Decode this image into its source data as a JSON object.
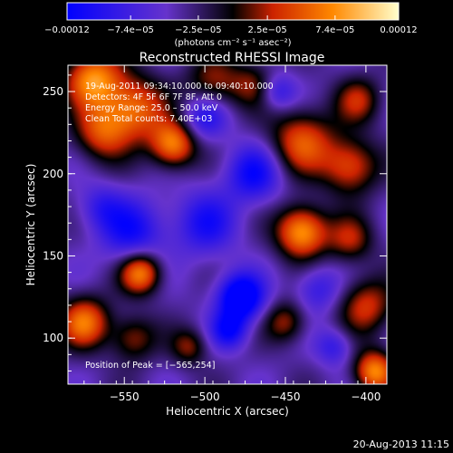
{
  "chart_data": {
    "type": "heatmap",
    "title": "Reconstructed RHESSI Image",
    "xlabel": "Heliocentric X (arcsec)",
    "ylabel": "Heliocentric Y (arcsec)",
    "xlim": [
      -585,
      -387
    ],
    "ylim": [
      72,
      266
    ],
    "x_ticks": [
      -550,
      -500,
      -450,
      -400
    ],
    "x_tick_labels": [
      "−550",
      "−500",
      "−450",
      "−400"
    ],
    "y_ticks": [
      100,
      150,
      200,
      250
    ],
    "y_tick_labels": [
      "100",
      "150",
      "200",
      "250"
    ],
    "colorbar": {
      "min": -0.00012,
      "max": 0.00012,
      "tick_values": [
        -0.00012,
        -7.4e-05,
        -2.5e-05,
        2.5e-05,
        7.4e-05,
        0.00012
      ],
      "tick_labels": [
        "−0.00012",
        "−7.4e−05",
        "−2.5e−05",
        "2.5e−05",
        "7.4e−05",
        "0.00012"
      ],
      "unit": "(photons cm⁻² s⁻¹ asec⁻²)",
      "colors": [
        "#0000ff",
        "#6633cc",
        "#000000",
        "#cc2200",
        "#ff8800",
        "#ffffcc"
      ]
    },
    "annotations": {
      "time_range": "19-Aug-2011 09:34:10.000 to 09:40:10.000",
      "detectors": "Detectors: 4F 5F 6F 7F 8F, Att 0",
      "energy": "Energy Range: 25.0 – 50.0 keV",
      "clean": "Clean    Total counts: 7.40E+03",
      "peak": "Position of Peak = [−565,254]"
    },
    "blobs": [
      {
        "x": -570,
        "y": 258,
        "v": 0.9,
        "s": 12
      },
      {
        "x": -545,
        "y": 240,
        "v": 0.8,
        "s": 14
      },
      {
        "x": -520,
        "y": 218,
        "v": 0.9,
        "s": 10
      },
      {
        "x": -565,
        "y": 225,
        "v": 0.6,
        "s": 12
      },
      {
        "x": -495,
        "y": 255,
        "v": 0.5,
        "s": 12
      },
      {
        "x": -470,
        "y": 255,
        "v": 0.4,
        "s": 10
      },
      {
        "x": -440,
        "y": 220,
        "v": 0.7,
        "s": 14
      },
      {
        "x": -410,
        "y": 205,
        "v": 0.7,
        "s": 12
      },
      {
        "x": -405,
        "y": 245,
        "v": 0.5,
        "s": 10
      },
      {
        "x": -440,
        "y": 165,
        "v": 1.0,
        "s": 11
      },
      {
        "x": -410,
        "y": 160,
        "v": 0.5,
        "s": 10
      },
      {
        "x": -540,
        "y": 140,
        "v": 0.9,
        "s": 9
      },
      {
        "x": -575,
        "y": 110,
        "v": 0.8,
        "s": 11
      },
      {
        "x": -545,
        "y": 100,
        "v": 0.5,
        "s": 10
      },
      {
        "x": -400,
        "y": 120,
        "v": 0.6,
        "s": 12
      },
      {
        "x": -395,
        "y": 80,
        "v": 0.9,
        "s": 9
      },
      {
        "x": -450,
        "y": 110,
        "v": 0.5,
        "s": 9
      },
      {
        "x": -510,
        "y": 95,
        "v": 0.45,
        "s": 8
      },
      {
        "x": -478,
        "y": 125,
        "v": -1.0,
        "s": 10
      },
      {
        "x": -485,
        "y": 105,
        "v": -0.6,
        "s": 8
      },
      {
        "x": -545,
        "y": 165,
        "v": -0.55,
        "s": 14
      },
      {
        "x": -500,
        "y": 170,
        "v": -0.5,
        "s": 14
      },
      {
        "x": -470,
        "y": 200,
        "v": -0.6,
        "s": 12
      },
      {
        "x": -500,
        "y": 235,
        "v": -0.5,
        "s": 10
      },
      {
        "x": -430,
        "y": 130,
        "v": -0.4,
        "s": 10
      },
      {
        "x": -565,
        "y": 180,
        "v": -0.35,
        "s": 10
      },
      {
        "x": -420,
        "y": 95,
        "v": -0.4,
        "s": 8
      },
      {
        "x": -455,
        "y": 250,
        "v": -0.45,
        "s": 8
      }
    ]
  },
  "footer": {
    "timestamp": "20-Aug-2013 11:15"
  }
}
